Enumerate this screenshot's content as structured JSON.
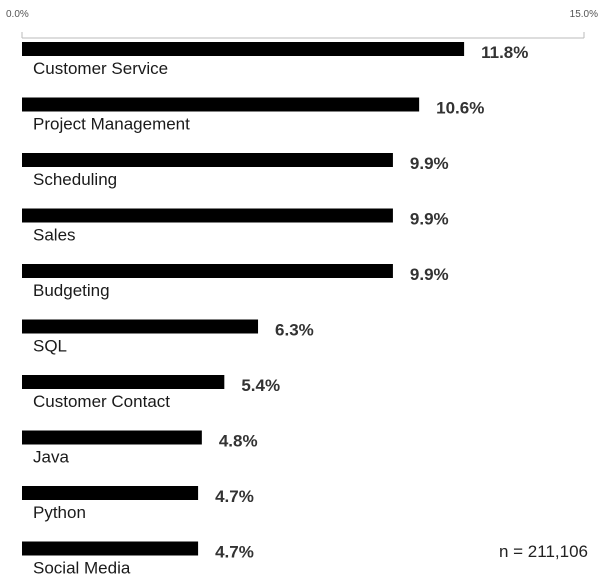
{
  "chart_data": {
    "type": "bar",
    "orientation": "horizontal",
    "categories": [
      "Customer Service",
      "Project Management",
      "Scheduling",
      "Sales",
      "Budgeting",
      "SQL",
      "Customer Contact",
      "Java",
      "Python",
      "Social Media"
    ],
    "values": [
      11.8,
      10.6,
      9.9,
      9.9,
      9.9,
      6.3,
      5.4,
      4.8,
      4.7,
      4.7
    ],
    "value_labels": [
      "11.8%",
      "10.6%",
      "9.9%",
      "9.9%",
      "9.9%",
      "6.3%",
      "5.4%",
      "4.8%",
      "4.7%",
      "4.7%"
    ],
    "xlim": [
      0,
      15
    ],
    "x_tick_labels": [
      "0.0%",
      "15.0%"
    ],
    "bar_color": "#000000",
    "grid": false,
    "legend": "none"
  },
  "note": "n = 211,106"
}
